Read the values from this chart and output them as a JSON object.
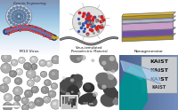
{
  "figsize": [
    2.0,
    1.24
  ],
  "dpi": 100,
  "bg_color": "#ffffff",
  "top_row_labels": [
    "M13 Virus",
    "Virus-templated\nPiezoelectric Material",
    "Nanogenerator"
  ],
  "label_fontsize": 3.2,
  "panel_colors": {
    "p0_bg": "#d8dde8",
    "p1_bg": "#e8e8e8",
    "p2_bg": "#dde0e8",
    "virus_dark": "#2a3a6a",
    "virus_mid": "#4a6aaa",
    "virus_light": "#8aaad0",
    "ng_pink": "#c8a0c8",
    "ng_purple": "#7050a0",
    "ng_silver": "#b0b8c8",
    "ng_gold": "#b09020",
    "particle_red": "#cc2222",
    "particle_gray": "#888888",
    "particle_blue": "#3355aa"
  },
  "bottom_left_bg": "#787878",
  "bottom_mid_bg": "#909090",
  "bottom_right_bg": "#3366aa",
  "scale_labels": [
    "100 nm",
    "150 nm"
  ]
}
